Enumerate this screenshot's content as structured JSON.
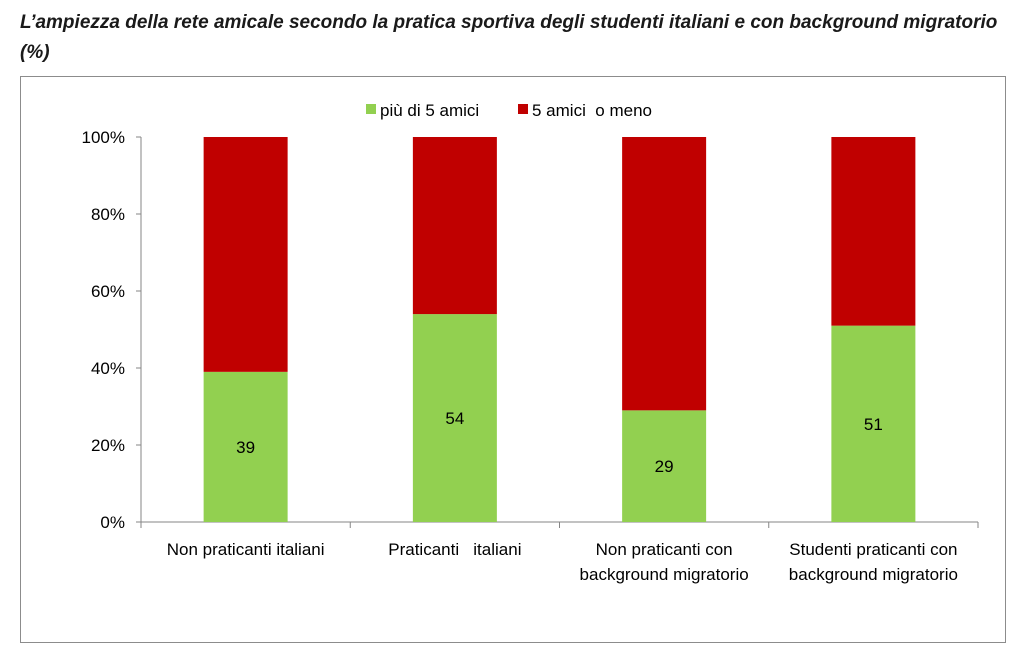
{
  "title": "L’ampiezza della rete amicale secondo la pratica sportiva degli studenti italiani e con background migratorio (%)",
  "chart_data": {
    "type": "bar",
    "stacked": true,
    "percent": true,
    "categories": [
      [
        "Non praticanti italiani"
      ],
      [
        "Praticanti   italiani"
      ],
      [
        "Non praticanti con",
        "background migratorio"
      ],
      [
        "Studenti praticanti con",
        "background migratorio"
      ]
    ],
    "series": [
      {
        "name": "più di 5 amici",
        "color": "#92d050",
        "values": [
          39,
          54,
          29,
          51
        ],
        "show_labels": true
      },
      {
        "name": "5 amici  o meno",
        "color": "#c00000",
        "values": [
          61,
          46,
          71,
          49
        ],
        "show_labels": false
      }
    ],
    "ylim": [
      0,
      100
    ],
    "yticks": [
      "0%",
      "20%",
      "40%",
      "60%",
      "80%",
      "100%"
    ],
    "yticks_values": [
      0,
      20,
      40,
      60,
      80,
      100
    ],
    "legend": "top",
    "grid": false
  }
}
